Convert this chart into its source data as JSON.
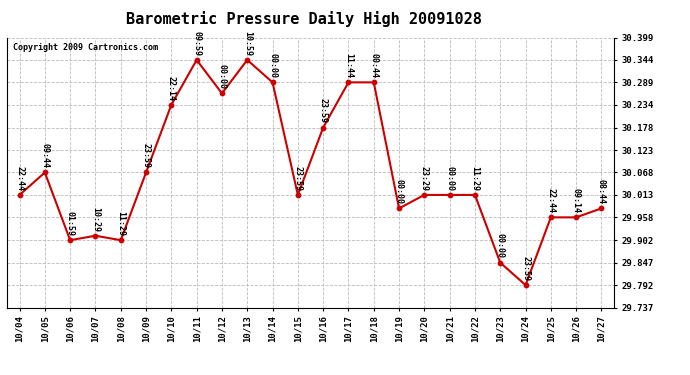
{
  "title": "Barometric Pressure Daily High 20091028",
  "copyright": "Copyright 2009 Cartronics.com",
  "dates": [
    "10/04",
    "10/05",
    "10/06",
    "10/07",
    "10/08",
    "10/09",
    "10/10",
    "10/11",
    "10/12",
    "10/13",
    "10/14",
    "10/15",
    "10/16",
    "10/17",
    "10/18",
    "10/19",
    "10/20",
    "10/21",
    "10/22",
    "10/23",
    "10/24",
    "10/25",
    "10/26",
    "10/27"
  ],
  "values": [
    30.013,
    30.068,
    29.902,
    29.913,
    29.902,
    30.068,
    30.234,
    30.344,
    30.262,
    30.344,
    30.289,
    30.013,
    30.178,
    30.289,
    30.289,
    29.98,
    30.013,
    30.013,
    30.013,
    29.847,
    29.792,
    29.958,
    29.958,
    29.98
  ],
  "time_labels": [
    "22:44",
    "09:44",
    "01:59",
    "10:29",
    "11:29",
    "23:59",
    "22:14",
    "09:59",
    "00:00",
    "10:59",
    "00:00",
    "23:59",
    "23:59",
    "11:44",
    "00:44",
    "00:00",
    "23:29",
    "00:00",
    "11:29",
    "00:00",
    "23:59",
    "22:44",
    "09:14",
    "08:44"
  ],
  "ylim": [
    29.737,
    30.399
  ],
  "yticks": [
    29.737,
    29.792,
    29.847,
    29.902,
    29.958,
    30.013,
    30.068,
    30.123,
    30.178,
    30.234,
    30.289,
    30.344,
    30.399
  ],
  "line_color": "#cc0000",
  "marker_color": "#cc0000",
  "grid_color": "#bbbbbb",
  "background_color": "#ffffff",
  "title_fontsize": 11,
  "label_fontsize": 6.0,
  "tick_fontsize": 6.5,
  "copyright_fontsize": 6.0
}
